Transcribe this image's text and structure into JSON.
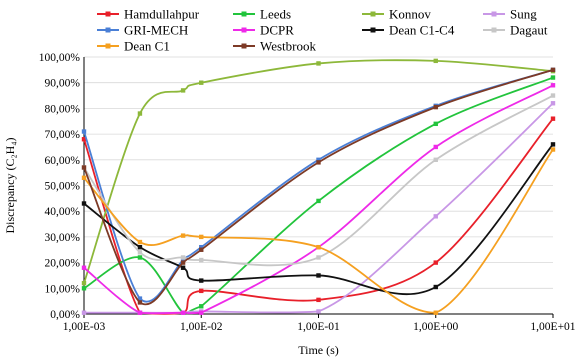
{
  "chart_data": {
    "type": "line",
    "title": "",
    "xlabel": "Time (s)",
    "ylabel": "Discrepancy (C₂H₄)",
    "x_scale": "log",
    "xlim": [
      0.001,
      10
    ],
    "ylim": [
      0,
      100
    ],
    "x_tick_labels": [
      "1,00E-03",
      "1,00E-02",
      "1,00E-01",
      "1,00E+00",
      "1,00E+01"
    ],
    "x_tick_values": [
      0.001,
      0.01,
      0.1,
      1,
      10
    ],
    "y_tick_labels": [
      "0,00%",
      "10,00%",
      "20,00%",
      "30,00%",
      "40,00%",
      "50,00%",
      "60,00%",
      "70,00%",
      "80,00%",
      "90,00%",
      "100,00%"
    ],
    "y_tick_values": [
      0,
      10,
      20,
      30,
      40,
      50,
      60,
      70,
      80,
      90,
      100
    ],
    "grid": {
      "horizontal": true,
      "vertical": false
    },
    "legend_placement": "top",
    "series": [
      {
        "name": "Hamdullahpur",
        "color": "#e8202a",
        "x": [
          0.001,
          0.003,
          0.007,
          0.01,
          0.1,
          1,
          10
        ],
        "y": [
          68,
          0.5,
          0.5,
          9,
          5.5,
          20,
          76
        ]
      },
      {
        "name": "Leeds",
        "color": "#22c43c",
        "x": [
          0.001,
          0.003,
          0.007,
          0.01,
          0.1,
          1,
          10
        ],
        "y": [
          10,
          22,
          0.5,
          3,
          44,
          74,
          92
        ]
      },
      {
        "name": "Konnov",
        "color": "#8db83a",
        "x": [
          0.001,
          0.003,
          0.007,
          0.01,
          0.1,
          1,
          10
        ],
        "y": [
          12,
          78,
          87,
          90,
          97.5,
          98.5,
          94.5
        ]
      },
      {
        "name": "Sung",
        "color": "#c897e6",
        "x": [
          0.001,
          0.003,
          0.007,
          0.01,
          0.1,
          1,
          10
        ],
        "y": [
          0.5,
          0.5,
          0.5,
          1,
          1,
          38,
          82
        ]
      },
      {
        "name": "GRI-MECH",
        "color": "#4a7fd6",
        "x": [
          0.001,
          0.003,
          0.007,
          0.01,
          0.1,
          1,
          10
        ],
        "y": [
          71,
          6,
          21,
          26,
          60,
          81,
          95
        ]
      },
      {
        "name": "DCPR",
        "color": "#ee2ae8",
        "x": [
          0.001,
          0.003,
          0.007,
          0.01,
          0.1,
          1,
          10
        ],
        "y": [
          18,
          0.5,
          0.5,
          0.5,
          26,
          65,
          89
        ]
      },
      {
        "name": "Dean C1-C4",
        "color": "#111111",
        "x": [
          0.001,
          0.003,
          0.007,
          0.01,
          0.1,
          1,
          10
        ],
        "y": [
          43,
          26,
          18,
          13,
          15,
          10.5,
          66
        ]
      },
      {
        "name": "Dagaut",
        "color": "#c7c7c7",
        "x": [
          0.001,
          0.003,
          0.007,
          0.01,
          0.1,
          1,
          10
        ],
        "y": [
          57,
          24,
          22,
          21,
          22,
          60,
          85
        ]
      },
      {
        "name": "Dean C1",
        "color": "#f5a020",
        "x": [
          0.001,
          0.003,
          0.007,
          0.01,
          0.1,
          1,
          10
        ],
        "y": [
          53,
          28,
          30.5,
          30,
          26,
          0.5,
          64
        ]
      },
      {
        "name": "Westbrook",
        "color": "#7d3a26",
        "x": [
          0.001,
          0.003,
          0.007,
          0.01,
          0.1,
          1,
          10
        ],
        "y": [
          57,
          4.5,
          20,
          25,
          59,
          80.5,
          95
        ]
      }
    ]
  }
}
